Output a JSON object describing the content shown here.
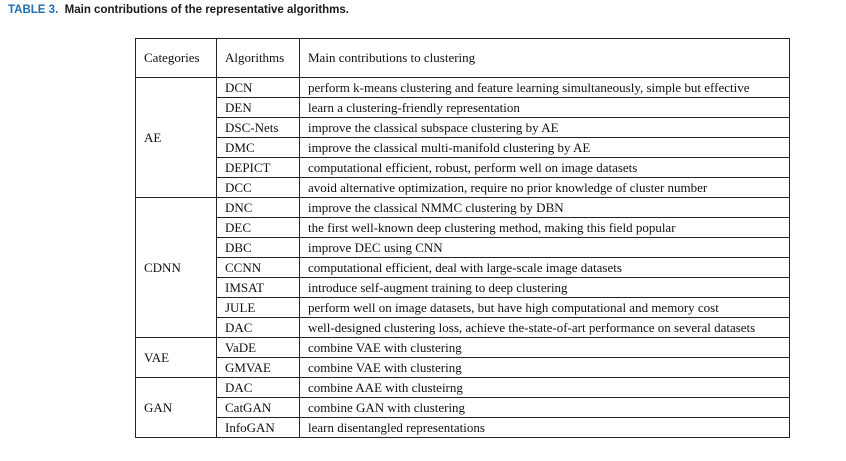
{
  "caption": {
    "label": "TABLE 3.",
    "text": "Main contributions of the representative algorithms."
  },
  "table": {
    "headers": [
      "Categories",
      "Algorithms",
      "Main contributions to clustering"
    ],
    "groups": [
      {
        "category": "AE",
        "rows": [
          {
            "algorithm": "DCN",
            "contribution": "perform k-means clustering and feature learning simultaneously, simple but effective"
          },
          {
            "algorithm": "DEN",
            "contribution": "learn a clustering-friendly representation"
          },
          {
            "algorithm": "DSC-Nets",
            "contribution": "improve the classical subspace clustering by AE"
          },
          {
            "algorithm": "DMC",
            "contribution": "improve the classical multi-manifold clustering by AE"
          },
          {
            "algorithm": "DEPICT",
            "contribution": "computational efficient, robust, perform well on image datasets"
          },
          {
            "algorithm": "DCC",
            "contribution": "avoid alternative optimization, require no prior knowledge of cluster number"
          }
        ]
      },
      {
        "category": "CDNN",
        "rows": [
          {
            "algorithm": "DNC",
            "contribution": "improve the classical NMMC clustering by DBN"
          },
          {
            "algorithm": "DEC",
            "contribution": "the first well-known deep clustering method, making this field popular"
          },
          {
            "algorithm": "DBC",
            "contribution": "improve DEC using CNN"
          },
          {
            "algorithm": "CCNN",
            "contribution": "computational efficient, deal with large-scale image datasets"
          },
          {
            "algorithm": "IMSAT",
            "contribution": "introduce self-augment training to deep clustering"
          },
          {
            "algorithm": "JULE",
            "contribution": "perform well on image datasets, but have high computational and memory cost"
          },
          {
            "algorithm": "DAC",
            "contribution": "well-designed clustering loss, achieve the-state-of-art performance on several datasets"
          }
        ]
      },
      {
        "category": "VAE",
        "rows": [
          {
            "algorithm": "VaDE",
            "contribution": "combine VAE with clustering"
          },
          {
            "algorithm": "GMVAE",
            "contribution": "combine VAE with clustering"
          }
        ]
      },
      {
        "category": "GAN",
        "rows": [
          {
            "algorithm": "DAC",
            "contribution": "combine AAE with clusteirng"
          },
          {
            "algorithm": "CatGAN",
            "contribution": "combine GAN with clustering"
          },
          {
            "algorithm": "InfoGAN",
            "contribution": "learn disentangled representations"
          }
        ]
      }
    ]
  }
}
